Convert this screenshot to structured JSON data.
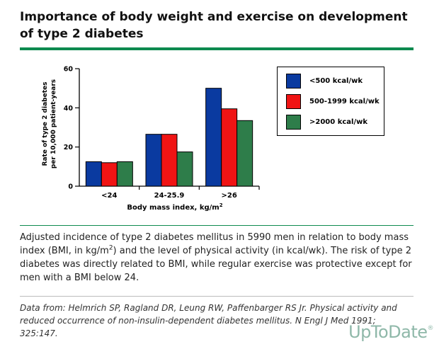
{
  "title": "Importance of body weight and exercise on development of type 2 diabetes",
  "colors": {
    "accent": "#0d8a4f",
    "blue": "#0a3aa0",
    "red": "#f01414",
    "green": "#2e7d4a"
  },
  "chart_data": {
    "type": "bar",
    "categories": [
      "<24",
      "24-25.9",
      ">26"
    ],
    "series": [
      {
        "name": "<500 kcal/wk",
        "color": "#0a3aa0",
        "values": [
          12.5,
          26.5,
          50
        ]
      },
      {
        "name": "500-1999 kcal/wk",
        "color": "#f01414",
        "values": [
          12,
          26.5,
          39.5
        ]
      },
      {
        "name": ">2000 kcal/wk",
        "color": "#2e7d4a",
        "values": [
          12.5,
          17.5,
          33.5
        ]
      }
    ],
    "ylabel_line1": "Rate of type 2 diabetes",
    "ylabel_line2": "per 10,000 patient-years",
    "xlabel": "Body mass index, kg/m",
    "xlabel_sup": "2",
    "ylim": [
      0,
      60
    ],
    "yticks": [
      0,
      20,
      40,
      60
    ],
    "legend_position": "top-right",
    "grid": false
  },
  "caption": {
    "part1": "Adjusted incidence of type 2 diabetes mellitus in 5990 men in relation to body mass index (BMI, in kg/m",
    "sup": "2",
    "part2": ") and the level of physical activity (in kcal/wk). The risk of type 2 diabetes was directly related to BMI, while regular exercise was protective except for men with a BMI below 24."
  },
  "source": "Data from: Helmrich SP, Ragland DR, Leung RW, Paffenbarger RS Jr. Physical activity and reduced occurrence of non-insulin-dependent diabetes mellitus. N Engl J Med 1991; 325:147.",
  "brand": {
    "name": "UpToDate",
    "mark": "®"
  }
}
